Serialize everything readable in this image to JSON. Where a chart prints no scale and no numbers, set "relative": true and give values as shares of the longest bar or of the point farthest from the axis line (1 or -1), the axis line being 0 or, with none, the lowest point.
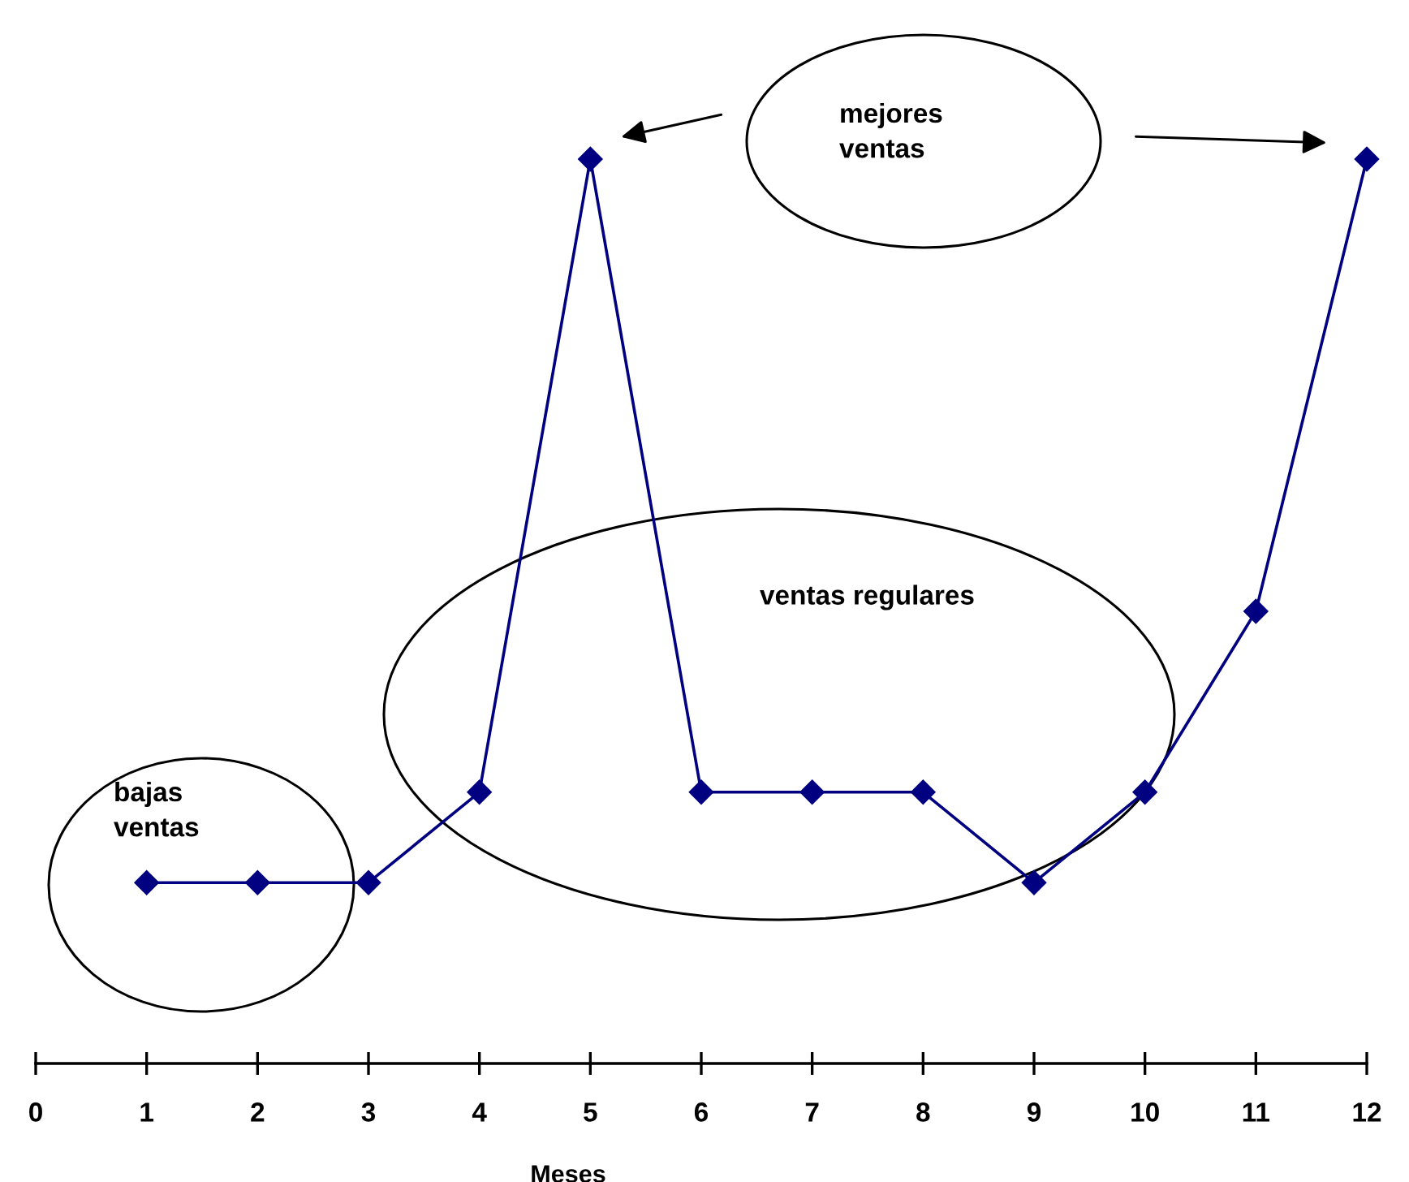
{
  "chart_data": {
    "type": "line",
    "relative": true,
    "xlabel": "Meses",
    "x": [
      1,
      2,
      3,
      4,
      5,
      6,
      7,
      8,
      9,
      10,
      11,
      12
    ],
    "series": [
      {
        "color": "#000080",
        "values": [
          0.2,
          0.2,
          0.2,
          0.3,
          1,
          0.3,
          0.3,
          0.3,
          0.2,
          0.3,
          0.5,
          1
        ]
      }
    ],
    "xlim": [
      0,
      12
    ],
    "xticks": [
      0,
      1,
      2,
      3,
      4,
      5,
      6,
      7,
      8,
      9,
      10,
      11,
      12
    ],
    "marker": "diamond",
    "line_style": "solid",
    "annotations": [
      "bajas ventas",
      "ventas regulares",
      "mejores ventas"
    ]
  }
}
